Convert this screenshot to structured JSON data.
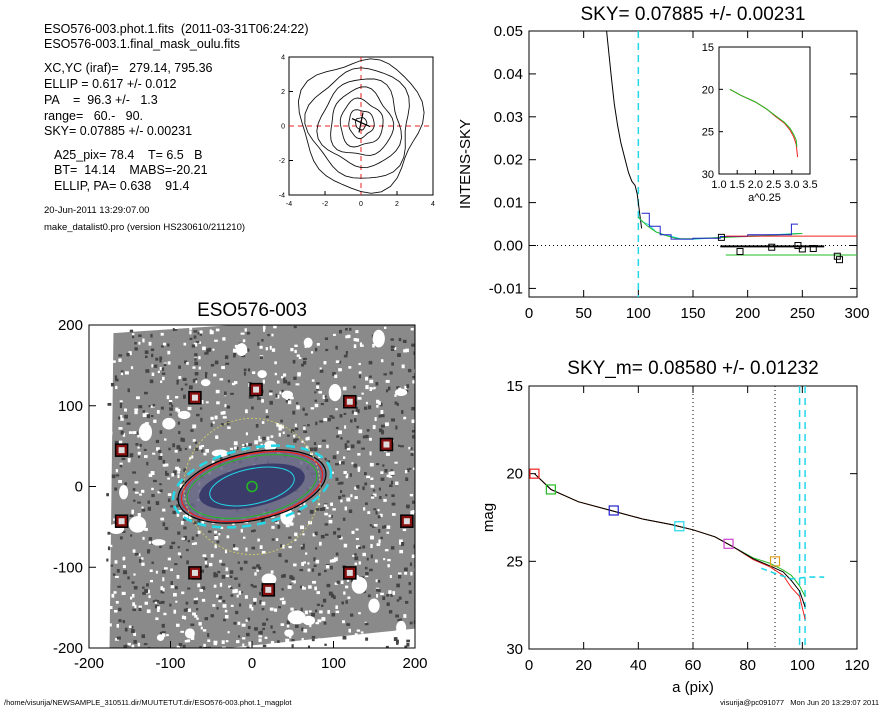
{
  "header": {
    "line1": "ESO576-003.phot.1.fits  (2011-03-31T06:24:22)",
    "line2": "ESO576-003.1.final_mask_oulu.fits",
    "xcyc": "XC,YC (iraf)=   279.14, 795.36",
    "ellip": "ELLIP = 0.617 +/- 0.012",
    "pa": "PA    =  96.3 +/-   1.3",
    "range": "range=   60.-   90.",
    "sky": "SKY= 0.07885 +/- 0.00231",
    "a25": "A25_pix= 78.4    T= 6.5   B",
    "bt": "BT=  14.14    MABS=-20.21",
    "ellpa": "ELLIP, PA= 0.638    91.4",
    "date": "20-Jun-2011 13:29:07.00",
    "prog": "make_datalist0.pro (version HS230610/211210)"
  },
  "footer": {
    "path": "/home/visurija/NEWSAMPLE_310511.dir/MUUTETUT.dir/ESO576-003.phot.1_magplot",
    "user": "visurija@pc091077   Mon Jun 20 13:29:07 2011"
  },
  "colors": {
    "cyan": "#22d8e8",
    "red": "#ee2020",
    "green": "#22bb22",
    "blue": "#2222cc",
    "magenta": "#cc44cc"
  },
  "chart_data": [
    {
      "type": "line",
      "panel": "contour",
      "title": "",
      "xlim": [
        -4,
        4
      ],
      "ylim": [
        -4,
        4
      ],
      "xticks": [
        "-4",
        "-2",
        "0",
        "2",
        "4"
      ],
      "yticks": [
        "-4",
        "-2",
        "0",
        "2",
        "4"
      ],
      "center": [
        0,
        0
      ]
    },
    {
      "type": "line",
      "panel": "sky",
      "title": "SKY= 0.07885 +/- 0.00231",
      "xlabel": "",
      "ylabel": "INTENS-SKY",
      "xlim": [
        0,
        300
      ],
      "ylim": [
        -0.012,
        0.05
      ],
      "xticks": [
        "0",
        "50",
        "100",
        "150",
        "200",
        "250",
        "300"
      ],
      "yticks": [
        "0.05",
        "0.04",
        "0.03",
        "0.02",
        "0.01",
        "0.00",
        "-0.01"
      ],
      "vline_x": 100,
      "series": [
        {
          "color": "black",
          "points": [
            [
              71,
              0.05
            ],
            [
              73,
              0.045
            ],
            [
              75,
              0.04
            ],
            [
              78,
              0.033
            ],
            [
              81,
              0.028
            ],
            [
              84,
              0.024
            ],
            [
              88,
              0.02
            ],
            [
              91,
              0.017
            ],
            [
              94,
              0.015
            ],
            [
              97,
              0.014
            ],
            [
              99,
              0.012
            ],
            [
              101,
              0.008
            ],
            [
              103,
              0.004
            ]
          ]
        },
        {
          "color": "cyan",
          "points": [
            [
              100,
              0.0065
            ],
            [
              104,
              0.0055
            ],
            [
              110,
              0.0048
            ],
            [
              116,
              0.0032
            ],
            [
              124,
              0.0025
            ],
            [
              132,
              0.002
            ],
            [
              140,
              0.0015
            ],
            [
              152,
              0.0015
            ],
            [
              164,
              0.0017
            ],
            [
              176,
              0.0019
            ],
            [
              192,
              0.0021
            ],
            [
              210,
              0.0024
            ],
            [
              230,
              0.0026
            ],
            [
              244,
              0.0028
            ],
            [
              250,
              0.0028
            ]
          ]
        },
        {
          "color": "green",
          "points": [
            [
              100,
              0.0066
            ],
            [
              108,
              0.0046
            ],
            [
              116,
              0.0032
            ],
            [
              124,
              0.0024
            ],
            [
              136,
              0.0016
            ],
            [
              150,
              0.0016
            ],
            [
              170,
              0.0018
            ],
            [
              190,
              0.002
            ],
            [
              210,
              0.0022
            ],
            [
              230,
              0.0025
            ],
            [
              250,
              0.0028
            ]
          ]
        },
        {
          "color": "blue",
          "points": [
            [
              103,
              0.0075
            ],
            [
              110,
              0.0075
            ],
            [
              110,
              0.0045
            ],
            [
              120,
              0.0045
            ],
            [
              120,
              0.0025
            ],
            [
              130,
              0.0025
            ],
            [
              130,
              0.0015
            ],
            [
              150,
              0.0015
            ],
            [
              150,
              0.0017
            ],
            [
              175,
              0.0017
            ],
            [
              175,
              0.0021
            ],
            [
              200,
              0.0021
            ],
            [
              200,
              0.0025
            ],
            [
              240,
              0.0025
            ],
            [
              240,
              0.005
            ],
            [
              246,
              0.005
            ]
          ]
        },
        {
          "color": "red",
          "points": [
            [
              180,
              0.0022
            ],
            [
              300,
              0.0022
            ]
          ]
        },
        {
          "color": "green",
          "points": [
            [
              180,
              -0.0022
            ],
            [
              300,
              -0.0022
            ]
          ]
        },
        {
          "color": "black",
          "width": 2,
          "points": [
            [
              175,
              -0.0002
            ],
            [
              270,
              -0.0002
            ]
          ]
        }
      ],
      "squares": [
        [
          176,
          0.0019
        ],
        [
          193,
          -0.0014
        ],
        [
          222,
          -0.0004
        ],
        [
          246,
          0.0
        ],
        [
          250,
          -0.0008
        ],
        [
          260,
          -0.0007
        ],
        [
          282,
          -0.0025
        ],
        [
          284,
          -0.0033
        ]
      ],
      "inset": {
        "xlabel": "a^0.25",
        "xlim": [
          1.0,
          3.5
        ],
        "ylim": [
          15,
          30
        ],
        "xticks": [
          "1.0",
          "1.5",
          "2.0",
          "2.5",
          "3.0",
          "3.5"
        ],
        "yticks": [
          "15",
          "20",
          "25",
          "30"
        ],
        "series": [
          {
            "color": "red",
            "points": [
              [
                1.3,
                20.0
              ],
              [
                1.6,
                20.7
              ],
              [
                2.0,
                21.5
              ],
              [
                2.3,
                22.3
              ],
              [
                2.55,
                23.2
              ],
              [
                2.8,
                24.0
              ],
              [
                2.95,
                24.8
              ],
              [
                3.05,
                25.6
              ],
              [
                3.12,
                26.5
              ],
              [
                3.16,
                28.0
              ]
            ]
          },
          {
            "color": "green",
            "points": [
              [
                1.3,
                20.0
              ],
              [
                1.6,
                20.7
              ],
              [
                2.0,
                21.5
              ],
              [
                2.3,
                22.3
              ],
              [
                2.55,
                23.1
              ],
              [
                2.8,
                23.9
              ],
              [
                2.95,
                24.6
              ],
              [
                3.05,
                25.3
              ],
              [
                3.12,
                26.0
              ],
              [
                3.14,
                26.8
              ]
            ]
          }
        ]
      }
    },
    {
      "type": "scatter",
      "panel": "image",
      "title": "ESO576-003",
      "xlim": [
        -200,
        200
      ],
      "ylim": [
        -200,
        200
      ],
      "xticks": [
        "-200",
        "-100",
        "0",
        "100",
        "200"
      ],
      "yticks": [
        "200",
        "100",
        "0",
        "-100",
        "-200"
      ],
      "stars": [
        [
          -70,
          110
        ],
        [
          5,
          120
        ],
        [
          -160,
          45
        ],
        [
          120,
          105
        ],
        [
          165,
          52
        ],
        [
          -160,
          -43
        ],
        [
          -70,
          -107
        ],
        [
          20,
          -128
        ],
        [
          120,
          -107
        ],
        [
          190,
          -43
        ]
      ],
      "stars_paired": [
        [
          -75,
          110
        ],
        [
          0,
          122
        ]
      ],
      "galaxy": {
        "center": [
          0,
          0
        ],
        "a": 88,
        "b": 36,
        "pa_deg": 12
      }
    },
    {
      "type": "line",
      "panel": "mag",
      "title": "SKY_m=  0.08580 +/- 0.01232",
      "xlabel": "a (pix)",
      "ylabel": "mag",
      "xlim": [
        0,
        120
      ],
      "ylim": [
        15,
        30
      ],
      "xticks": [
        "0",
        "20",
        "40",
        "60",
        "80",
        "100",
        "120"
      ],
      "yticks": [
        "15",
        "20",
        "25",
        "30"
      ],
      "dotted_x": [
        60,
        90
      ],
      "dashed_x": [
        99,
        101
      ],
      "series": [
        {
          "color": "green",
          "points": [
            [
              2,
              20.0
            ],
            [
              8,
              20.9
            ],
            [
              18,
              21.6
            ],
            [
              30,
              22.1
            ],
            [
              42,
              22.6
            ],
            [
              52,
              22.9
            ],
            [
              60,
              23.2
            ],
            [
              68,
              23.6
            ],
            [
              75,
              24.2
            ],
            [
              82,
              24.8
            ],
            [
              88,
              25.1
            ],
            [
              93,
              25.5
            ],
            [
              96,
              25.8
            ],
            [
              99,
              26.4
            ],
            [
              101,
              27.0
            ]
          ]
        },
        {
          "color": "red",
          "points": [
            [
              2,
              20.0
            ],
            [
              8,
              20.9
            ],
            [
              18,
              21.6
            ],
            [
              30,
              22.1
            ],
            [
              42,
              22.6
            ],
            [
              52,
              22.9
            ],
            [
              60,
              23.2
            ],
            [
              68,
              23.6
            ],
            [
              75,
              24.2
            ],
            [
              82,
              24.9
            ],
            [
              88,
              25.3
            ],
            [
              93,
              25.8
            ],
            [
              96,
              26.5
            ],
            [
              99,
              27.0
            ],
            [
              101,
              28.3
            ]
          ]
        },
        {
          "color": "black",
          "points": [
            [
              2,
              20.0
            ],
            [
              8,
              20.9
            ],
            [
              18,
              21.6
            ],
            [
              30,
              22.1
            ],
            [
              42,
              22.6
            ],
            [
              52,
              22.9
            ],
            [
              60,
              23.2
            ],
            [
              68,
              23.6
            ],
            [
              75,
              24.2
            ],
            [
              82,
              24.85
            ],
            [
              88,
              25.25
            ],
            [
              93,
              25.6
            ],
            [
              96,
              26.1
            ],
            [
              99,
              26.7
            ],
            [
              101,
              27.6
            ]
          ]
        },
        {
          "color": "cyan",
          "dash": true,
          "points": [
            [
              85,
              25.4
            ],
            [
              92,
              25.8
            ],
            [
              96,
              26.0
            ],
            [
              102,
              25.9
            ],
            [
              108,
              25.9
            ]
          ]
        }
      ],
      "squares": [
        {
          "color": "red",
          "x": 2,
          "y": 20.0
        },
        {
          "color": "green",
          "x": 8,
          "y": 20.9
        },
        {
          "color": "blue",
          "x": 31,
          "y": 22.1
        },
        {
          "color": "cyan",
          "x": 55,
          "y": 23.0
        },
        {
          "color": "magenta",
          "x": 73,
          "y": 24.0
        },
        {
          "color": "orange",
          "x": 90,
          "y": 25.0
        }
      ]
    }
  ]
}
